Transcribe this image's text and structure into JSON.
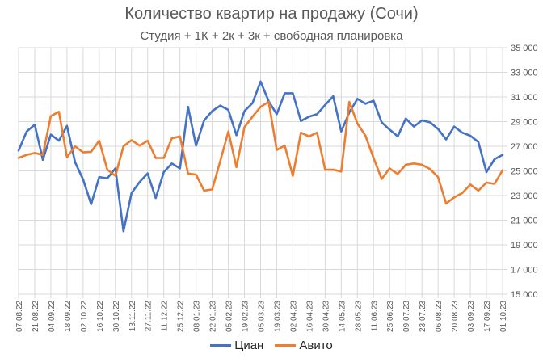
{
  "chart_data": {
    "type": "line",
    "title": "Количество квартир на продажу (Сочи)",
    "subtitle": "Студия + 1К + 2к + 3к + свободная планировка",
    "xlabel": "",
    "ylabel": "",
    "ylim": [
      15000,
      35000
    ],
    "yticks": [
      "35 000",
      "33 000",
      "31 000",
      "29 000",
      "27 000",
      "25 000",
      "23 000",
      "21 000",
      "19 000",
      "17 000",
      "15 000"
    ],
    "y_axis_position": "right",
    "grid": true,
    "legend_position": "bottom",
    "x_tick_labels": [
      "07.08.22",
      "21.08.22",
      "04.09.22",
      "18.09.22",
      "02.10.22",
      "16.10.22",
      "30.10.22",
      "13.11.22",
      "27.11.22",
      "11.12.22",
      "25.12.22",
      "08.01.23",
      "22.01.23",
      "05.02.23",
      "19.02.23",
      "05.03.23",
      "19.03.23",
      "02.04.23",
      "16.04.23",
      "30.04.23",
      "14.05.23",
      "28.05.23",
      "11.06.23",
      "25.06.23",
      "09.07.23",
      "23.07.23",
      "06.08.23",
      "20.08.23",
      "03.09.23",
      "17.09.23",
      "01.10.23"
    ],
    "x_interval": "weekly",
    "series": [
      {
        "name": "Циан",
        "color": "#4472C4",
        "values": [
          26650,
          28200,
          28750,
          25900,
          27950,
          27450,
          28650,
          25700,
          24300,
          22300,
          24500,
          24400,
          25200,
          20100,
          23200,
          24100,
          24800,
          22800,
          24900,
          25600,
          25200,
          30200,
          27050,
          29100,
          29850,
          30300,
          29950,
          27900,
          29850,
          30500,
          32250,
          30650,
          29600,
          31300,
          31300,
          29050,
          29400,
          29600,
          30350,
          31050,
          28200,
          29750,
          30850,
          30450,
          30700,
          28950,
          28350,
          27800,
          29250,
          28600,
          29100,
          28950,
          28400,
          27550,
          28600,
          28100,
          27850,
          27350,
          24900,
          25950,
          26300
        ]
      },
      {
        "name": "Авито",
        "color": "#ED7D31",
        "values": [
          26050,
          26300,
          26450,
          26300,
          29450,
          29800,
          26100,
          27000,
          26500,
          26550,
          27450,
          25100,
          24600,
          27000,
          27500,
          27050,
          27450,
          26050,
          26050,
          27650,
          27800,
          24800,
          24700,
          23400,
          23500,
          25800,
          28200,
          25300,
          28550,
          29400,
          30200,
          30600,
          26700,
          27050,
          24600,
          28100,
          27800,
          28100,
          25100,
          25100,
          24950,
          30600,
          28850,
          27850,
          26050,
          24350,
          25200,
          24750,
          25500,
          25600,
          25500,
          25150,
          24500,
          22350,
          22850,
          23200,
          23900,
          23400,
          24050,
          23950,
          25050
        ]
      }
    ]
  },
  "legend": {
    "items": [
      {
        "label": "Циан",
        "color": "#4472C4"
      },
      {
        "label": "Авито",
        "color": "#ED7D31"
      }
    ]
  }
}
